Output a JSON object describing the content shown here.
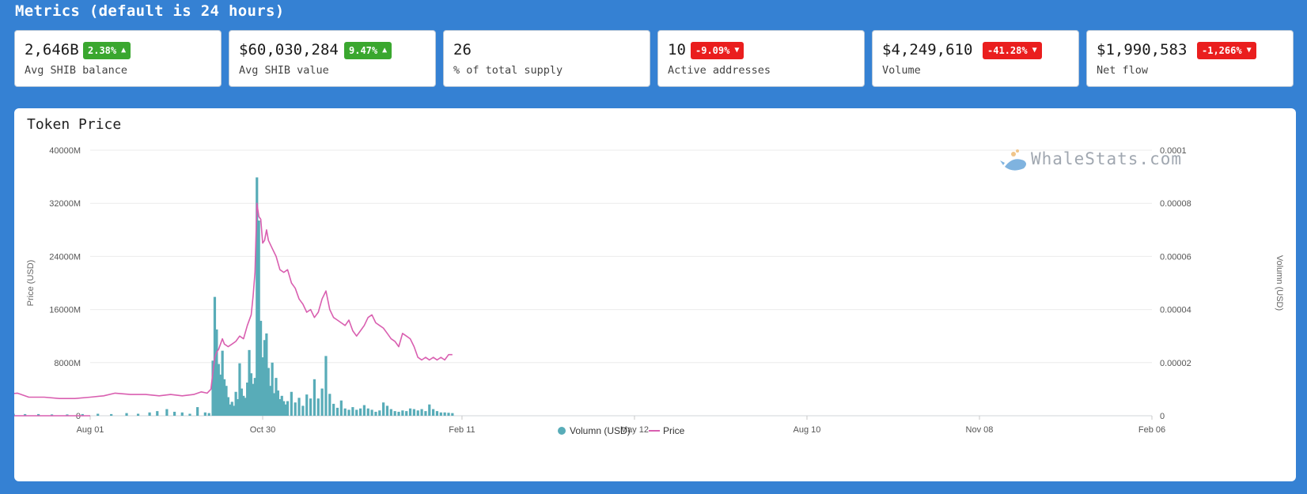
{
  "header": {
    "title": "Metrics (default is 24 hours)"
  },
  "cards": [
    {
      "value": "2,646B",
      "change": "2.38%",
      "direction": "up",
      "label": "Avg SHIB balance"
    },
    {
      "value": "$60,030,284",
      "change": "9.47%",
      "direction": "up",
      "label": "Avg SHIB value"
    },
    {
      "value": "26",
      "change": "",
      "direction": "none",
      "label": "% of total supply"
    },
    {
      "value": "10",
      "change": "-9.09%",
      "direction": "down",
      "label": "Active addresses"
    },
    {
      "value": "$4,249,610",
      "change": "-41.28%",
      "direction": "down",
      "label": "Volume"
    },
    {
      "value": "$1,990,583",
      "change": "-1,266%",
      "direction": "down",
      "label": "Net flow"
    }
  ],
  "colors": {
    "background": "#3581d3",
    "up": "#3aa72f",
    "down": "#ea1e1e",
    "volume": "#58acb8",
    "price": "#d95fb0"
  },
  "chart_title": "Token Price",
  "watermark": {
    "text": "WhaleStats.com",
    "icon": "whale-logo-icon"
  },
  "chart_data": {
    "type": "bar+line",
    "title": "Token Price",
    "x_tick_labels": [
      "Aug 01",
      "Oct 30",
      "Feb 11",
      "May 12",
      "Aug 10",
      "Nov 08",
      "Feb 06"
    ],
    "left_axis": {
      "label": "Price (USD)",
      "ticks": [
        "0",
        "8000M",
        "16000M",
        "24000M",
        "32000M",
        "40000M"
      ],
      "range": [
        0,
        40000000000
      ]
    },
    "right_axis": {
      "label": "Volumn (USD)",
      "ticks": [
        "0",
        "0.00002",
        "0.00004",
        "0.00006",
        "0.00008",
        "0.0001"
      ],
      "range": [
        0,
        0.0001
      ]
    },
    "grid": "horizontal",
    "legend": {
      "position": "bottom-center",
      "items": [
        {
          "name": "Volumn (USD)",
          "marker": "circle"
        },
        {
          "name": "Price",
          "marker": "line"
        }
      ]
    },
    "series": [
      {
        "name": "Volumn (USD)",
        "kind": "bar",
        "axis": "left",
        "unit": "M USD",
        "points": [
          [
            "Apr 27",
            500
          ],
          [
            "May 05",
            100
          ],
          [
            "May 07",
            9200
          ],
          [
            "May 08",
            6800
          ],
          [
            "May 09",
            14400
          ],
          [
            "May 10",
            5400
          ],
          [
            "May 11",
            3800
          ],
          [
            "May 12",
            5100
          ],
          [
            "May 13",
            2300
          ],
          [
            "May 14",
            1500
          ],
          [
            "May 15",
            1900
          ],
          [
            "May 16",
            1700
          ],
          [
            "May 17",
            2500
          ],
          [
            "May 18",
            1300
          ],
          [
            "May 19",
            1100
          ],
          [
            "May 20",
            900
          ],
          [
            "May 22",
            800
          ],
          [
            "May 24",
            600
          ],
          [
            "May 26",
            500
          ],
          [
            "May 28",
            800
          ],
          [
            "May 30",
            400
          ],
          [
            "Jun 02",
            500
          ],
          [
            "Jun 06",
            400
          ],
          [
            "Jun 10",
            600
          ],
          [
            "Jun 14",
            400
          ],
          [
            "Jun 18",
            300
          ],
          [
            "Jun 22",
            300
          ],
          [
            "Jun 28",
            250
          ],
          [
            "Jul 05",
            250
          ],
          [
            "Jul 12",
            200
          ],
          [
            "Jul 20",
            200
          ],
          [
            "Jul 28",
            250
          ],
          [
            "Aug 05",
            300
          ],
          [
            "Aug 12",
            250
          ],
          [
            "Aug 20",
            400
          ],
          [
            "Aug 26",
            300
          ],
          [
            "Sep 01",
            500
          ],
          [
            "Sep 05",
            700
          ],
          [
            "Sep 10",
            1000
          ],
          [
            "Sep 14",
            600
          ],
          [
            "Sep 18",
            500
          ],
          [
            "Sep 22",
            300
          ],
          [
            "Sep 26",
            1300
          ],
          [
            "Sep 30",
            500
          ],
          [
            "Oct 02",
            400
          ],
          [
            "Oct 04",
            8300
          ],
          [
            "Oct 05",
            17900
          ],
          [
            "Oct 06",
            13000
          ],
          [
            "Oct 07",
            7800
          ],
          [
            "Oct 08",
            6200
          ],
          [
            "Oct 09",
            9800
          ],
          [
            "Oct 10",
            5500
          ],
          [
            "Oct 11",
            4500
          ],
          [
            "Oct 12",
            2800
          ],
          [
            "Oct 13",
            1700
          ],
          [
            "Oct 14",
            2100
          ],
          [
            "Oct 15",
            1500
          ],
          [
            "Oct 16",
            3600
          ],
          [
            "Oct 17",
            2500
          ],
          [
            "Oct 18",
            7900
          ],
          [
            "Oct 19",
            4100
          ],
          [
            "Oct 20",
            3000
          ],
          [
            "Oct 21",
            2700
          ],
          [
            "Oct 22",
            5000
          ],
          [
            "Oct 23",
            9900
          ],
          [
            "Oct 24",
            6400
          ],
          [
            "Oct 25",
            4800
          ],
          [
            "Oct 26",
            5700
          ],
          [
            "Oct 27",
            35900
          ],
          [
            "Oct 28",
            29400
          ],
          [
            "Oct 29",
            14300
          ],
          [
            "Oct 30",
            8800
          ],
          [
            "Oct 31",
            11400
          ],
          [
            "Nov 01",
            12400
          ],
          [
            "Nov 02",
            7200
          ],
          [
            "Nov 03",
            4500
          ],
          [
            "Nov 04",
            8000
          ],
          [
            "Nov 05",
            3400
          ],
          [
            "Nov 06",
            5700
          ],
          [
            "Nov 07",
            3800
          ],
          [
            "Nov 08",
            2500
          ],
          [
            "Nov 09",
            3000
          ],
          [
            "Nov 10",
            2200
          ],
          [
            "Nov 11",
            1700
          ],
          [
            "Nov 12",
            2200
          ],
          [
            "Nov 14",
            3600
          ],
          [
            "Nov 16",
            2000
          ],
          [
            "Nov 18",
            2700
          ],
          [
            "Nov 20",
            1500
          ],
          [
            "Nov 22",
            3200
          ],
          [
            "Nov 24",
            2600
          ],
          [
            "Nov 26",
            5500
          ],
          [
            "Nov 28",
            2600
          ],
          [
            "Nov 30",
            4100
          ],
          [
            "Dec 02",
            9000
          ],
          [
            "Dec 04",
            3300
          ],
          [
            "Dec 06",
            1800
          ],
          [
            "Dec 08",
            1200
          ],
          [
            "Dec 10",
            2300
          ],
          [
            "Dec 12",
            1100
          ],
          [
            "Dec 14",
            900
          ],
          [
            "Dec 16",
            1300
          ],
          [
            "Dec 18",
            900
          ],
          [
            "Dec 20",
            1100
          ],
          [
            "Dec 22",
            1600
          ],
          [
            "Dec 24",
            1100
          ],
          [
            "Dec 26",
            900
          ],
          [
            "Dec 28",
            600
          ],
          [
            "Dec 30",
            800
          ],
          [
            "Jan 01",
            2000
          ],
          [
            "Jan 03",
            1500
          ],
          [
            "Jan 05",
            1000
          ],
          [
            "Jan 07",
            700
          ],
          [
            "Jan 09",
            600
          ],
          [
            "Jan 11",
            800
          ],
          [
            "Jan 13",
            700
          ],
          [
            "Jan 15",
            1100
          ],
          [
            "Jan 17",
            1000
          ],
          [
            "Jan 19",
            800
          ],
          [
            "Jan 21",
            1000
          ],
          [
            "Jan 23",
            700
          ],
          [
            "Jan 25",
            1700
          ],
          [
            "Jan 27",
            1000
          ],
          [
            "Jan 29",
            700
          ],
          [
            "Jan 31",
            500
          ],
          [
            "Feb 02",
            500
          ],
          [
            "Feb 04",
            450
          ],
          [
            "Feb 06",
            400
          ]
        ]
      },
      {
        "name": "Price",
        "kind": "line",
        "axis": "right",
        "unit": "USD",
        "points": [
          [
            "Aug 01",
            0.0
          ],
          [
            "Apr 01",
            0.0
          ],
          [
            "Apr 20",
            2e-07
          ],
          [
            "Apr 24",
            1e-06
          ],
          [
            "Apr 27",
            3.5e-06
          ],
          [
            "Apr 30",
            1.2e-06
          ],
          [
            "May 03",
            1.2e-06
          ],
          [
            "May 06",
            1.8e-06
          ],
          [
            "May 07",
            6e-06
          ],
          [
            "May 08",
            1.5e-05
          ],
          [
            "May 09",
            3.6e-05
          ],
          [
            "May 10",
            3e-05
          ],
          [
            "May 11",
            2e-05
          ],
          [
            "May 12",
            1.8e-05
          ],
          [
            "May 13",
            1.9e-05
          ],
          [
            "May 14",
            1.7e-05
          ],
          [
            "May 16",
            1.6e-05
          ],
          [
            "May 17",
            1.4e-05
          ],
          [
            "May 19",
            1.2e-05
          ],
          [
            "May 22",
            9.5e-06
          ],
          [
            "May 26",
            1e-05
          ],
          [
            "May 30",
            9.5e-06
          ],
          [
            "Jun 05",
            8.5e-06
          ],
          [
            "Jun 12",
            9e-06
          ],
          [
            "Jun 18",
            8e-06
          ],
          [
            "Jun 24",
            8.5e-06
          ],
          [
            "Jun 30",
            7e-06
          ],
          [
            "Jul 08",
            7e-06
          ],
          [
            "Jul 16",
            6.5e-06
          ],
          [
            "Jul 24",
            6.5e-06
          ],
          [
            "Aug 01",
            7e-06
          ],
          [
            "Aug 08",
            7.5e-06
          ],
          [
            "Aug 14",
            8.5e-06
          ],
          [
            "Aug 22",
            8e-06
          ],
          [
            "Aug 30",
            8e-06
          ],
          [
            "Sep 06",
            7.5e-06
          ],
          [
            "Sep 12",
            8e-06
          ],
          [
            "Sep 18",
            7.5e-06
          ],
          [
            "Sep 24",
            8e-06
          ],
          [
            "Sep 28",
            9e-06
          ],
          [
            "Oct 01",
            8.5e-06
          ],
          [
            "Oct 03",
            1e-05
          ],
          [
            "Oct 04",
            1.6e-05
          ],
          [
            "Oct 05",
            2.2e-05
          ],
          [
            "Oct 06",
            2.4e-05
          ],
          [
            "Oct 07",
            2.5e-05
          ],
          [
            "Oct 08",
            2.7e-05
          ],
          [
            "Oct 09",
            2.9e-05
          ],
          [
            "Oct 10",
            2.7e-05
          ],
          [
            "Oct 12",
            2.6e-05
          ],
          [
            "Oct 14",
            2.7e-05
          ],
          [
            "Oct 16",
            2.8e-05
          ],
          [
            "Oct 18",
            3e-05
          ],
          [
            "Oct 20",
            2.9e-05
          ],
          [
            "Oct 22",
            3.4e-05
          ],
          [
            "Oct 24",
            3.8e-05
          ],
          [
            "Oct 25",
            4.5e-05
          ],
          [
            "Oct 26",
            5.4e-05
          ],
          [
            "Oct 27",
            8e-05
          ],
          [
            "Oct 28",
            7.5e-05
          ],
          [
            "Oct 29",
            7.4e-05
          ],
          [
            "Oct 30",
            6.5e-05
          ],
          [
            "Oct 31",
            6.6e-05
          ],
          [
            "Nov 01",
            7e-05
          ],
          [
            "Nov 02",
            6.6e-05
          ],
          [
            "Nov 04",
            6.3e-05
          ],
          [
            "Nov 06",
            6e-05
          ],
          [
            "Nov 08",
            5.5e-05
          ],
          [
            "Nov 10",
            5.4e-05
          ],
          [
            "Nov 12",
            5.5e-05
          ],
          [
            "Nov 14",
            5e-05
          ],
          [
            "Nov 16",
            4.8e-05
          ],
          [
            "Nov 18",
            4.4e-05
          ],
          [
            "Nov 20",
            4.2e-05
          ],
          [
            "Nov 22",
            3.9e-05
          ],
          [
            "Nov 24",
            4e-05
          ],
          [
            "Nov 26",
            3.7e-05
          ],
          [
            "Nov 28",
            3.9e-05
          ],
          [
            "Nov 30",
            4.4e-05
          ],
          [
            "Dec 02",
            4.7e-05
          ],
          [
            "Dec 04",
            4e-05
          ],
          [
            "Dec 06",
            3.7e-05
          ],
          [
            "Dec 08",
            3.6e-05
          ],
          [
            "Dec 10",
            3.5e-05
          ],
          [
            "Dec 12",
            3.4e-05
          ],
          [
            "Dec 14",
            3.6e-05
          ],
          [
            "Dec 16",
            3.2e-05
          ],
          [
            "Dec 18",
            3e-05
          ],
          [
            "Dec 20",
            3.2e-05
          ],
          [
            "Dec 22",
            3.4e-05
          ],
          [
            "Dec 24",
            3.7e-05
          ],
          [
            "Dec 26",
            3.8e-05
          ],
          [
            "Dec 28",
            3.5e-05
          ],
          [
            "Dec 30",
            3.4e-05
          ],
          [
            "Jan 01",
            3.3e-05
          ],
          [
            "Jan 03",
            3.1e-05
          ],
          [
            "Jan 05",
            2.9e-05
          ],
          [
            "Jan 07",
            2.8e-05
          ],
          [
            "Jan 09",
            2.6e-05
          ],
          [
            "Jan 11",
            3.1e-05
          ],
          [
            "Jan 13",
            3e-05
          ],
          [
            "Jan 15",
            2.9e-05
          ],
          [
            "Jan 17",
            2.6e-05
          ],
          [
            "Jan 19",
            2.2e-05
          ],
          [
            "Jan 21",
            2.1e-05
          ],
          [
            "Jan 23",
            2.2e-05
          ],
          [
            "Jan 25",
            2.1e-05
          ],
          [
            "Jan 27",
            2.2e-05
          ],
          [
            "Jan 29",
            2.1e-05
          ],
          [
            "Jan 31",
            2.2e-05
          ],
          [
            "Feb 02",
            2.1e-05
          ],
          [
            "Feb 04",
            2.3e-05
          ],
          [
            "Feb 06",
            2.3e-05
          ]
        ]
      }
    ]
  }
}
